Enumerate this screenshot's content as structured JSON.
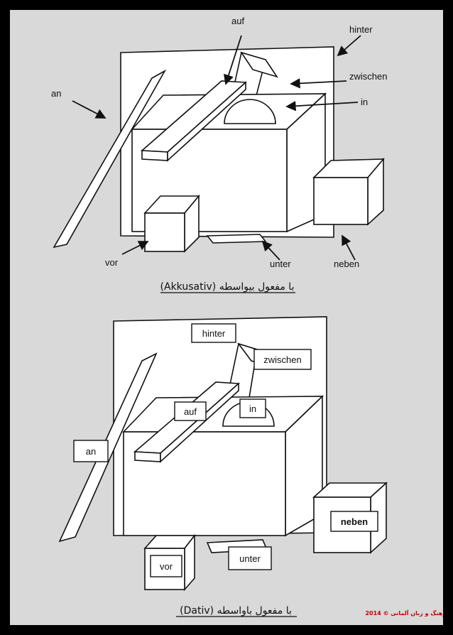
{
  "akkusativ": {
    "labels": {
      "auf": "auf",
      "hinter": "hinter",
      "an": "an",
      "zwischen": "zwischen",
      "in": "in",
      "vor": "vor",
      "unter": "unter",
      "neben": "neben"
    },
    "caption": "با مفعول بیواسطه (Akkusativ)"
  },
  "dativ": {
    "labels": {
      "hinter": "hinter",
      "zwischen": "zwischen",
      "auf": "auf",
      "in": "in",
      "an": "an",
      "neben": "neben",
      "vor": "vor",
      "unter": "unter"
    },
    "caption": "با مفعول باواسطه (Dativ)"
  },
  "copyright": "فرهنگ و زبان آلمانی © 2014"
}
